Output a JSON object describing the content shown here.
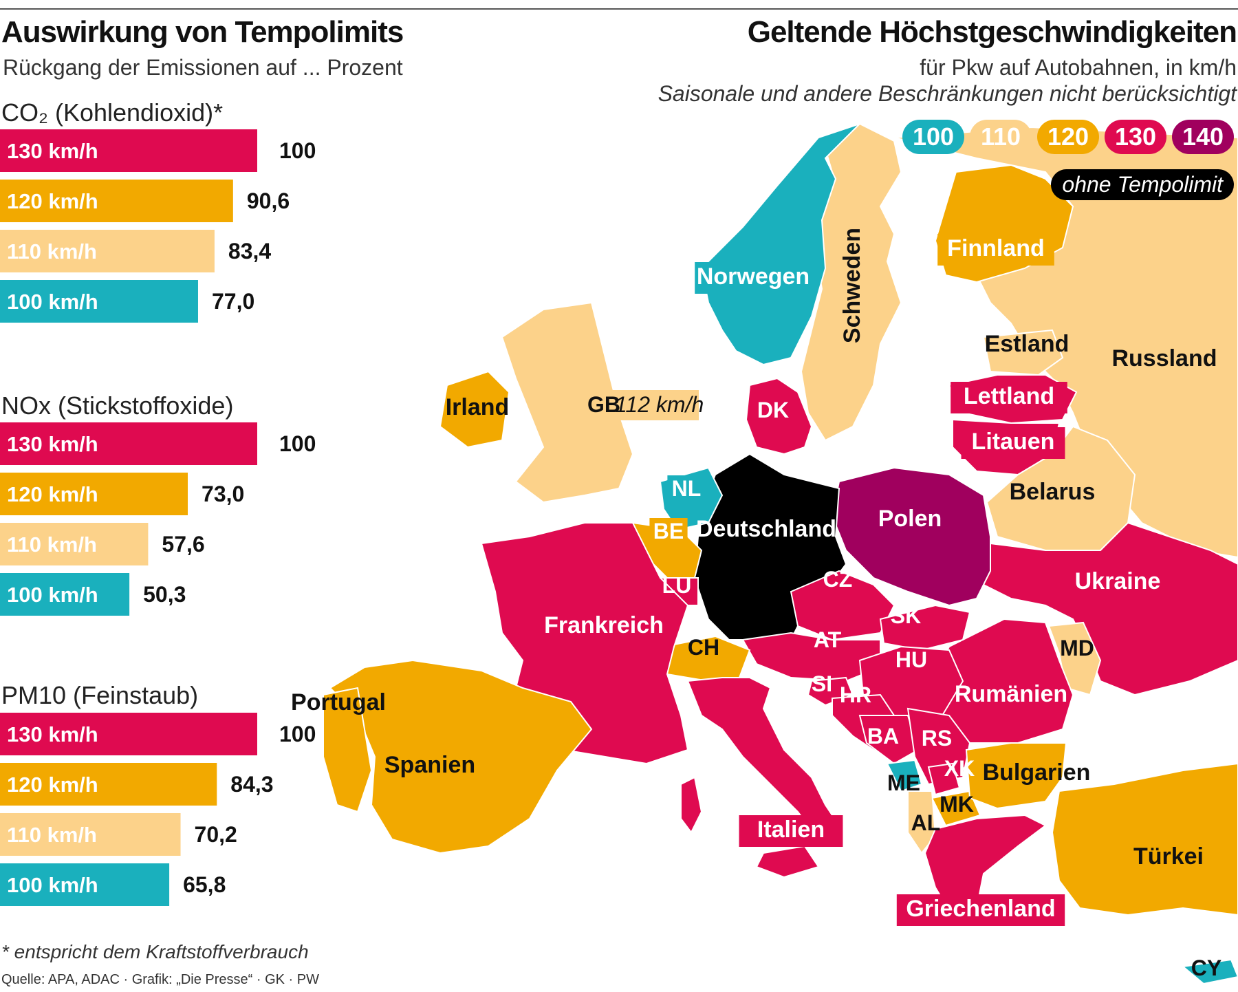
{
  "header": {
    "left_title": "Auswirkung von Tempolimits",
    "left_subtitle": "Rückgang der Emissionen auf ... Prozent",
    "right_title": "Geltende Höchstgeschwindigkeiten",
    "right_subtitle": "für Pkw auf Autobahnen, in km/h",
    "right_note": "Saisonale und andere Beschränkungen nicht berücksichtigt"
  },
  "footer": {
    "footnote": "* entspricht dem Kraftstoffverbrauch",
    "source": "Quelle: APA, ADAC · Grafik: „Die Presse“ · GK · PW"
  },
  "colors": {
    "c100": "#1ab0bd",
    "c110": "#fcd28a",
    "c120": "#f2a900",
    "c130": "#df0a50",
    "c140": "#a0005e",
    "none": "#000000"
  },
  "chart_data": [
    {
      "type": "bar",
      "title": "CO₂ (Kohlendioxid)*",
      "categories": [
        "130 km/h",
        "120 km/h",
        "110 km/h",
        "100 km/h"
      ],
      "values": [
        100,
        90.6,
        83.4,
        77.0
      ],
      "value_labels": [
        "100",
        "90,6",
        "83,4",
        "77,0"
      ],
      "xlim": [
        0,
        100
      ]
    },
    {
      "type": "bar",
      "title": "NOx (Stickstoffoxide)",
      "categories": [
        "130 km/h",
        "120 km/h",
        "110 km/h",
        "100 km/h"
      ],
      "values": [
        100,
        73.0,
        57.6,
        50.3
      ],
      "value_labels": [
        "100",
        "73,0",
        "57,6",
        "50,3"
      ],
      "xlim": [
        0,
        100
      ]
    },
    {
      "type": "bar",
      "title": "PM10 (Feinstaub)",
      "categories": [
        "130 km/h",
        "120 km/h",
        "110 km/h",
        "100 km/h"
      ],
      "values": [
        100,
        84.3,
        70.2,
        65.8
      ],
      "value_labels": [
        "100",
        "84,3",
        "70,2",
        "65,8"
      ],
      "xlim": [
        0,
        100
      ]
    }
  ],
  "map": {
    "legend": [
      "100",
      "110",
      "120",
      "130",
      "140"
    ],
    "no_limit_label": "ohne Tempolimit",
    "countries": [
      {
        "name": "Norwegen",
        "limit": 100
      },
      {
        "name": "Schweden",
        "limit": 110
      },
      {
        "name": "Finnland",
        "limit": 120
      },
      {
        "name": "Russland",
        "limit": 110
      },
      {
        "name": "Estland",
        "limit": 110
      },
      {
        "name": "Lettland",
        "limit": 130
      },
      {
        "name": "Litauen",
        "limit": 130
      },
      {
        "name": "Belarus",
        "limit": 110
      },
      {
        "name": "Irland",
        "limit": 120
      },
      {
        "name": "GB",
        "limit": 112,
        "label_extra": "112 km/h"
      },
      {
        "name": "DK",
        "limit": 130
      },
      {
        "name": "NL",
        "limit": 100
      },
      {
        "name": "BE",
        "limit": 120
      },
      {
        "name": "LU",
        "limit": 130
      },
      {
        "name": "Deutschland",
        "limit": "none"
      },
      {
        "name": "Polen",
        "limit": 140
      },
      {
        "name": "CZ",
        "limit": 130
      },
      {
        "name": "SK",
        "limit": 130
      },
      {
        "name": "AT",
        "limit": 130
      },
      {
        "name": "HU",
        "limit": 130
      },
      {
        "name": "Ukraine",
        "limit": 130
      },
      {
        "name": "MD",
        "limit": 110
      },
      {
        "name": "Rumänien",
        "limit": 130
      },
      {
        "name": "Frankreich",
        "limit": 130
      },
      {
        "name": "CH",
        "limit": 120
      },
      {
        "name": "SI",
        "limit": 130
      },
      {
        "name": "HR",
        "limit": 130
      },
      {
        "name": "BA",
        "limit": 130
      },
      {
        "name": "RS",
        "limit": 130
      },
      {
        "name": "ME",
        "limit": 100
      },
      {
        "name": "XK",
        "limit": 130
      },
      {
        "name": "MK",
        "limit": 120
      },
      {
        "name": "AL",
        "limit": 110
      },
      {
        "name": "Bulgarien",
        "limit": 120
      },
      {
        "name": "Portugal",
        "limit": 120
      },
      {
        "name": "Spanien",
        "limit": 120
      },
      {
        "name": "Italien",
        "limit": 130
      },
      {
        "name": "Griechenland",
        "limit": 130
      },
      {
        "name": "Türkei",
        "limit": 120
      },
      {
        "name": "CY",
        "limit": 100
      }
    ]
  }
}
